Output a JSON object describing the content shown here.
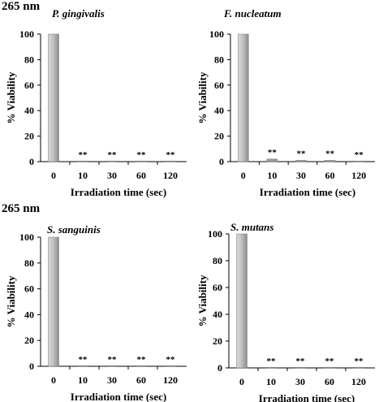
{
  "figure": {
    "top_label": "265 nm",
    "bottom_label": "265 nm"
  },
  "chart_data": [
    {
      "type": "bar",
      "title": "P. gingivalis",
      "categories": [
        "0",
        "10",
        "30",
        "60",
        "120"
      ],
      "values": [
        100,
        0,
        0,
        0,
        0
      ],
      "significance": [
        "",
        "**",
        "**",
        "**",
        "**"
      ],
      "xlabel": "Irradiation time (sec)",
      "ylabel": "% Viability",
      "ylim": [
        0,
        100
      ],
      "yticks": [
        0,
        20,
        40,
        60,
        80,
        100
      ]
    },
    {
      "type": "bar",
      "title": "F. nucleatum",
      "categories": [
        "0",
        "10",
        "30",
        "60",
        "120"
      ],
      "values": [
        100,
        2,
        1,
        1,
        0
      ],
      "significance": [
        "",
        "**",
        "**",
        "**",
        "**"
      ],
      "xlabel": "Irradiation time (sec)",
      "ylabel": "% Viability",
      "ylim": [
        0,
        100
      ],
      "yticks": [
        0,
        20,
        40,
        60,
        80,
        100
      ]
    },
    {
      "type": "bar",
      "title": "S. sanguinis",
      "categories": [
        "0",
        "10",
        "30",
        "60",
        "120"
      ],
      "values": [
        100,
        0,
        0,
        0,
        0
      ],
      "significance": [
        "",
        "**",
        "**",
        "**",
        "**"
      ],
      "xlabel": "Irradiation time (sec)",
      "ylabel": "% Viability",
      "ylim": [
        0,
        100
      ],
      "yticks": [
        0,
        20,
        40,
        60,
        80,
        100
      ]
    },
    {
      "type": "bar",
      "title": "S. mutans",
      "categories": [
        "0",
        "10",
        "30",
        "60",
        "120"
      ],
      "values": [
        100,
        0,
        0,
        0,
        0
      ],
      "significance": [
        "",
        "**",
        "**",
        "**",
        "**"
      ],
      "xlabel": "Irradiation time (sec)",
      "ylabel": "% Viability",
      "ylim": [
        0,
        100
      ],
      "yticks": [
        0,
        20,
        40,
        60,
        80,
        100
      ]
    }
  ]
}
